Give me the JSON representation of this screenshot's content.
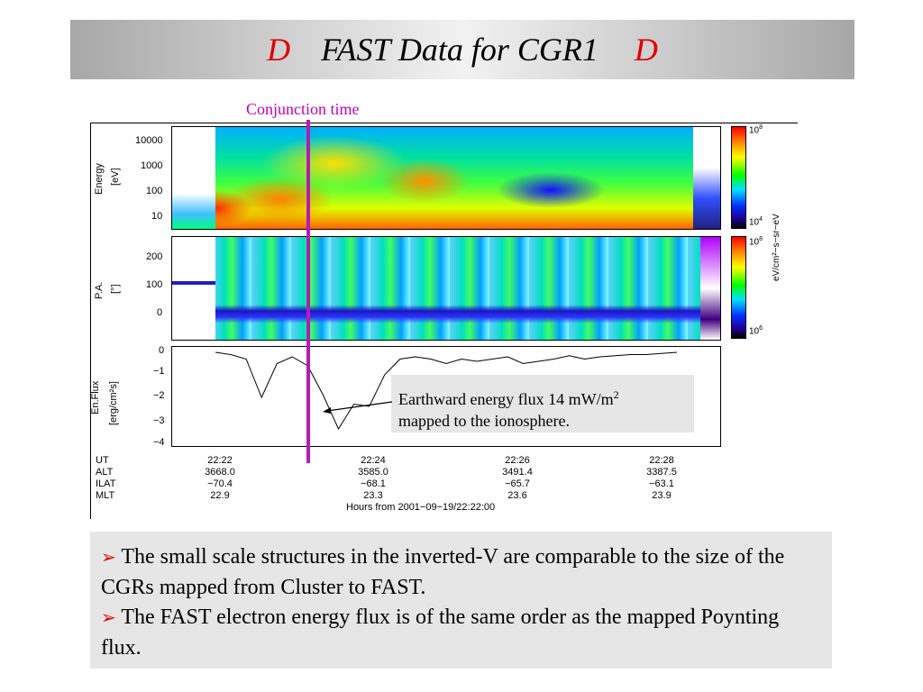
{
  "slide": {
    "title": "FAST Data for CGR1",
    "title_bullet_left": "D",
    "title_bullet_right": "D",
    "colors": {
      "title_bullet": "#e00000",
      "conjunction": "#c000c0",
      "arrow_bullet": "#e00000"
    }
  },
  "figure": {
    "conjunction_label": "Conjunction time",
    "energy_panel": {
      "ylabel_line1": "Energy",
      "ylabel_line2": "[eV]",
      "ticks": [
        "10000",
        "1000",
        "100",
        "10"
      ]
    },
    "pa_panel": {
      "ylabel_line1": "P.A.",
      "ylabel_line2": "[°]",
      "ticks": [
        "200",
        "100",
        "0"
      ]
    },
    "flux_panel": {
      "ylabel_line1": "En.Flux",
      "ylabel_line2": "[erg/cm²s]",
      "ticks": [
        "0",
        "−1",
        "−2",
        "−3",
        "−4"
      ],
      "trace_values": [
        0,
        -0.1,
        -0.3,
        -2.0,
        -0.5,
        -0.2,
        -0.6,
        -1.9,
        -3.4,
        -2.3,
        -2.4,
        -1.0,
        -0.3,
        -0.2,
        -0.3,
        -0.5,
        -0.3,
        -0.4,
        -0.3,
        -0.2,
        -0.5,
        -0.4,
        -0.3,
        -0.15,
        -0.3,
        -0.2,
        -0.15,
        -0.1,
        -0.1,
        -0.05,
        0
      ]
    },
    "colorbar_top": {
      "max_label": "10",
      "max_exp": "8",
      "min_label": "10",
      "min_exp": "4"
    },
    "colorbar_bottom": {
      "max_label": "10",
      "max_exp": "8",
      "min_label": "10",
      "min_exp": "6"
    },
    "colorbar_units": "eV/cm²−s−sr−eV",
    "ephemeris": {
      "row_labels": [
        "UT",
        "ALT",
        "ILAT",
        "MLT"
      ],
      "columns": [
        {
          "ut": "22:22",
          "alt": "3668.0",
          "ilat": "−70.4",
          "mlt": "22.9"
        },
        {
          "ut": "22:24",
          "alt": "3585.0",
          "ilat": "−68.1",
          "mlt": "23.3"
        },
        {
          "ut": "22:26",
          "alt": "3491.4",
          "ilat": "−65.7",
          "mlt": "23.6"
        },
        {
          "ut": "22:28",
          "alt": "3387.5",
          "ilat": "−63.1",
          "mlt": "23.9"
        }
      ],
      "footer": "Hours from 2001−09−19/22:22:00"
    },
    "annotation": {
      "line1": "Earthward energy flux 14 mW/m",
      "line1_sup": "2",
      "line2": "mapped to the ionosphere."
    }
  },
  "bullets": [
    {
      "arrow": "➢",
      "text": "The small scale structures in the inverted-V are comparable to the size of the CGRs mapped from Cluster to FAST."
    },
    {
      "arrow": "➢",
      "text": "The FAST electron energy flux is of the same order as the mapped Poynting flux."
    }
  ]
}
